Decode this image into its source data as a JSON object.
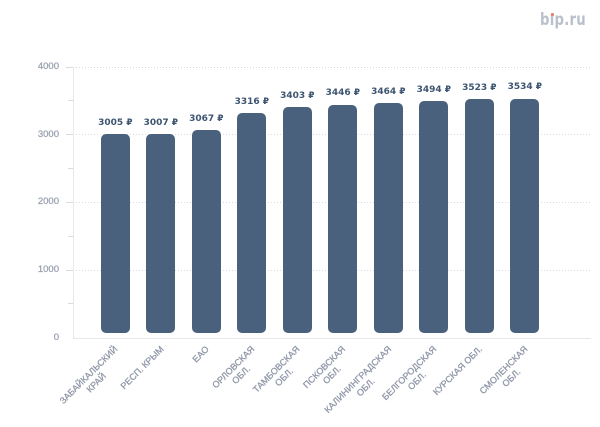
{
  "page": {
    "background": "#ffffff"
  },
  "logo": {
    "text": "bip.ru",
    "part_b": "b",
    "part_i": "ı",
    "part_rest": "p.ru",
    "color": "#b9bfcb",
    "dot_color": "#ee7e5f"
  },
  "chart_data": {
    "type": "bar",
    "title": "",
    "categories": [
      "ЗАБАЙКАЛЬСКИЙ КРАЙ",
      "РЕСП. КРЫМ",
      "ЕАО",
      "ОРЛОВСКАЯ ОБЛ.",
      "ТАМБОВСКАЯ ОБЛ.",
      "ПСКОВСКАЯ ОБЛ.",
      "КАЛИНИНГРАДСКАЯ ОБЛ.",
      "БЕЛГОРОДСКАЯ ОБЛ.",
      "КУРСКАЯ ОБЛ.",
      "СМОЛЕНСКАЯ ОБЛ."
    ],
    "category_label_lines": [
      [
        "ЗАБАЙКАЛЬСКИЙ",
        "КРАЙ"
      ],
      [
        "РЕСП. КРЫМ"
      ],
      [
        "ЕАО"
      ],
      [
        "ОРЛОВСКАЯ",
        "ОБЛ."
      ],
      [
        "ТАМБОВСКАЯ",
        "ОБЛ."
      ],
      [
        "ПСКОВСКАЯ",
        "ОБЛ."
      ],
      [
        "КАЛИНИНГРАДСКАЯ",
        "ОБЛ."
      ],
      [
        "БЕЛГОРОДСКАЯ",
        "ОБЛ."
      ],
      [
        "КУРСКАЯ ОБЛ."
      ],
      [
        "СМОЛЕНСКАЯ",
        "ОБЛ."
      ]
    ],
    "values": [
      3005,
      3007,
      3067,
      3316,
      3403,
      3446,
      3464,
      3494,
      3523,
      3534
    ],
    "value_labels": [
      "3005 ₽",
      "3007 ₽",
      "3067 ₽",
      "3316 ₽",
      "3403 ₽",
      "3446 ₽",
      "3464 ₽",
      "3494 ₽",
      "3523 ₽",
      "3534 ₽"
    ],
    "xlabel": "",
    "ylabel": "",
    "ylim": [
      0,
      4000
    ],
    "ytick_labels": [
      "0",
      "1000",
      "2000",
      "3000",
      "4000"
    ],
    "ytick_values": [
      0,
      1000,
      2000,
      3000,
      4000
    ],
    "minor_tick_step": 500,
    "grid": "dotted-horizontal-major",
    "legend": "none",
    "colors": {
      "bar": "#49617d",
      "value_label": "#3d5571",
      "y_tick_label": "#99a0af",
      "x_tick_label": "#9098a8",
      "axis_line": "#e7e8ea",
      "tick_mark": "#d9dbdf",
      "grid_dot": "#d9dbdf"
    }
  }
}
